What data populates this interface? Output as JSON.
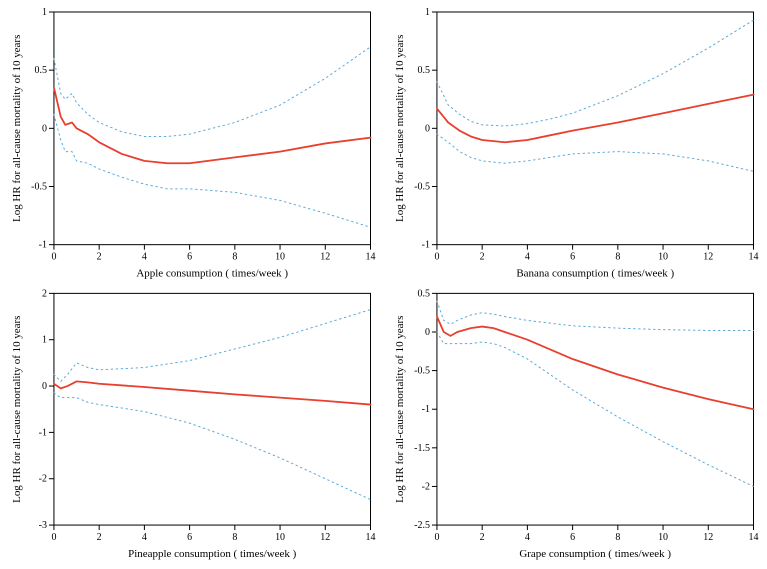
{
  "global": {
    "background_color": "#ffffff",
    "axis_color": "#000000",
    "estimate_color": "#e83f2e",
    "ci_color": "#5aa9d6",
    "estimate_line_width": 1.8,
    "ci_line_width": 1.0,
    "ci_dash": "1.5 3.5",
    "font_family": "Times New Roman",
    "tick_fontsize": 10,
    "axis_title_fontsize": 11,
    "y_label": "Log HR for all-cause mortality of 10 years"
  },
  "panels": [
    {
      "id": "apple",
      "x_label": "Apple consumption ( times/week )",
      "xlim": [
        0,
        14
      ],
      "ylim": [
        -1.0,
        1.0
      ],
      "xticks": [
        0,
        2,
        4,
        6,
        8,
        10,
        12,
        14
      ],
      "yticks": [
        -1.0,
        -0.5,
        0.0,
        0.5,
        1.0
      ],
      "estimate": [
        [
          0.0,
          0.35
        ],
        [
          0.3,
          0.1
        ],
        [
          0.5,
          0.03
        ],
        [
          0.8,
          0.05
        ],
        [
          1.0,
          0.0
        ],
        [
          1.5,
          -0.05
        ],
        [
          2.0,
          -0.12
        ],
        [
          3.0,
          -0.22
        ],
        [
          4.0,
          -0.28
        ],
        [
          5.0,
          -0.3
        ],
        [
          6.0,
          -0.3
        ],
        [
          8.0,
          -0.25
        ],
        [
          10.0,
          -0.2
        ],
        [
          12.0,
          -0.13
        ],
        [
          14.0,
          -0.08
        ]
      ],
      "ci_upper": [
        [
          0.0,
          0.6
        ],
        [
          0.3,
          0.3
        ],
        [
          0.5,
          0.25
        ],
        [
          0.8,
          0.3
        ],
        [
          1.0,
          0.22
        ],
        [
          1.5,
          0.12
        ],
        [
          2.0,
          0.05
        ],
        [
          3.0,
          -0.03
        ],
        [
          4.0,
          -0.07
        ],
        [
          5.0,
          -0.07
        ],
        [
          6.0,
          -0.05
        ],
        [
          8.0,
          0.05
        ],
        [
          10.0,
          0.2
        ],
        [
          12.0,
          0.43
        ],
        [
          14.0,
          0.7
        ]
      ],
      "ci_lower": [
        [
          0.0,
          0.12
        ],
        [
          0.3,
          -0.1
        ],
        [
          0.5,
          -0.2
        ],
        [
          0.8,
          -0.2
        ],
        [
          1.0,
          -0.28
        ],
        [
          1.5,
          -0.3
        ],
        [
          2.0,
          -0.35
        ],
        [
          3.0,
          -0.42
        ],
        [
          4.0,
          -0.48
        ],
        [
          5.0,
          -0.52
        ],
        [
          6.0,
          -0.52
        ],
        [
          8.0,
          -0.55
        ],
        [
          10.0,
          -0.62
        ],
        [
          12.0,
          -0.73
        ],
        [
          14.0,
          -0.85
        ]
      ]
    },
    {
      "id": "banana",
      "x_label": "Banana consumption ( times/week )",
      "xlim": [
        0,
        14
      ],
      "ylim": [
        -1.0,
        1.0
      ],
      "xticks": [
        0,
        2,
        4,
        6,
        8,
        10,
        12,
        14
      ],
      "yticks": [
        -1.0,
        -0.5,
        0.0,
        0.5,
        1.0
      ],
      "estimate": [
        [
          0.0,
          0.17
        ],
        [
          0.5,
          0.05
        ],
        [
          1.0,
          -0.02
        ],
        [
          1.5,
          -0.07
        ],
        [
          2.0,
          -0.1
        ],
        [
          3.0,
          -0.12
        ],
        [
          4.0,
          -0.1
        ],
        [
          5.0,
          -0.06
        ],
        [
          6.0,
          -0.02
        ],
        [
          8.0,
          0.05
        ],
        [
          10.0,
          0.13
        ],
        [
          12.0,
          0.21
        ],
        [
          14.0,
          0.29
        ]
      ],
      "ci_upper": [
        [
          0.0,
          0.4
        ],
        [
          0.5,
          0.2
        ],
        [
          1.0,
          0.12
        ],
        [
          1.5,
          0.06
        ],
        [
          2.0,
          0.03
        ],
        [
          3.0,
          0.02
        ],
        [
          4.0,
          0.04
        ],
        [
          5.0,
          0.08
        ],
        [
          6.0,
          0.13
        ],
        [
          8.0,
          0.28
        ],
        [
          10.0,
          0.47
        ],
        [
          12.0,
          0.69
        ],
        [
          14.0,
          0.93
        ]
      ],
      "ci_lower": [
        [
          0.0,
          -0.05
        ],
        [
          0.5,
          -0.12
        ],
        [
          1.0,
          -0.2
        ],
        [
          1.5,
          -0.25
        ],
        [
          2.0,
          -0.28
        ],
        [
          3.0,
          -0.3
        ],
        [
          4.0,
          -0.28
        ],
        [
          5.0,
          -0.25
        ],
        [
          6.0,
          -0.22
        ],
        [
          8.0,
          -0.2
        ],
        [
          10.0,
          -0.22
        ],
        [
          12.0,
          -0.28
        ],
        [
          14.0,
          -0.37
        ]
      ]
    },
    {
      "id": "pineapple",
      "x_label": "Pineapple consumption ( times/week )",
      "xlim": [
        0,
        14
      ],
      "ylim": [
        -3.0,
        2.0
      ],
      "xticks": [
        0,
        2,
        4,
        6,
        8,
        10,
        12,
        14
      ],
      "yticks": [
        -3,
        -2,
        -1,
        0,
        1,
        2
      ],
      "estimate": [
        [
          0.0,
          0.05
        ],
        [
          0.3,
          -0.05
        ],
        [
          0.6,
          0.0
        ],
        [
          1.0,
          0.1
        ],
        [
          1.5,
          0.08
        ],
        [
          2.0,
          0.05
        ],
        [
          4.0,
          -0.02
        ],
        [
          6.0,
          -0.1
        ],
        [
          8.0,
          -0.18
        ],
        [
          10.0,
          -0.25
        ],
        [
          12.0,
          -0.32
        ],
        [
          14.0,
          -0.4
        ]
      ],
      "ci_upper": [
        [
          0.0,
          0.25
        ],
        [
          0.3,
          0.1
        ],
        [
          0.6,
          0.25
        ],
        [
          1.0,
          0.5
        ],
        [
          1.5,
          0.4
        ],
        [
          2.0,
          0.35
        ],
        [
          4.0,
          0.4
        ],
        [
          6.0,
          0.55
        ],
        [
          8.0,
          0.8
        ],
        [
          10.0,
          1.05
        ],
        [
          12.0,
          1.35
        ],
        [
          14.0,
          1.65
        ]
      ],
      "ci_lower": [
        [
          0.0,
          -0.15
        ],
        [
          0.3,
          -0.25
        ],
        [
          0.6,
          -0.25
        ],
        [
          1.0,
          -0.25
        ],
        [
          1.5,
          -0.35
        ],
        [
          2.0,
          -0.4
        ],
        [
          4.0,
          -0.55
        ],
        [
          6.0,
          -0.8
        ],
        [
          8.0,
          -1.15
        ],
        [
          10.0,
          -1.55
        ],
        [
          12.0,
          -2.0
        ],
        [
          14.0,
          -2.45
        ]
      ]
    },
    {
      "id": "grape",
      "x_label": "Grape consumption ( times/week )",
      "xlim": [
        0,
        14
      ],
      "ylim": [
        -2.5,
        0.5
      ],
      "xticks": [
        0,
        2,
        4,
        6,
        8,
        10,
        12,
        14
      ],
      "yticks": [
        -2.5,
        -2.0,
        -1.5,
        -1.0,
        -0.5,
        0.0,
        0.5
      ],
      "estimate": [
        [
          0.0,
          0.2
        ],
        [
          0.3,
          0.0
        ],
        [
          0.6,
          -0.05
        ],
        [
          0.9,
          0.0
        ],
        [
          1.5,
          0.05
        ],
        [
          2.0,
          0.07
        ],
        [
          2.5,
          0.05
        ],
        [
          3.0,
          0.0
        ],
        [
          4.0,
          -0.1
        ],
        [
          6.0,
          -0.35
        ],
        [
          8.0,
          -0.55
        ],
        [
          10.0,
          -0.72
        ],
        [
          12.0,
          -0.87
        ],
        [
          14.0,
          -1.0
        ]
      ],
      "ci_upper": [
        [
          0.0,
          0.4
        ],
        [
          0.3,
          0.15
        ],
        [
          0.6,
          0.1
        ],
        [
          0.9,
          0.15
        ],
        [
          1.5,
          0.22
        ],
        [
          2.0,
          0.25
        ],
        [
          2.5,
          0.23
        ],
        [
          3.0,
          0.2
        ],
        [
          4.0,
          0.15
        ],
        [
          6.0,
          0.08
        ],
        [
          8.0,
          0.05
        ],
        [
          10.0,
          0.03
        ],
        [
          12.0,
          0.02
        ],
        [
          14.0,
          0.02
        ]
      ],
      "ci_lower": [
        [
          0.0,
          0.0
        ],
        [
          0.3,
          -0.15
        ],
        [
          0.6,
          -0.15
        ],
        [
          0.9,
          -0.15
        ],
        [
          1.5,
          -0.15
        ],
        [
          2.0,
          -0.13
        ],
        [
          2.5,
          -0.15
        ],
        [
          3.0,
          -0.2
        ],
        [
          4.0,
          -0.35
        ],
        [
          6.0,
          -0.75
        ],
        [
          8.0,
          -1.1
        ],
        [
          10.0,
          -1.42
        ],
        [
          12.0,
          -1.72
        ],
        [
          14.0,
          -2.0
        ]
      ]
    }
  ]
}
